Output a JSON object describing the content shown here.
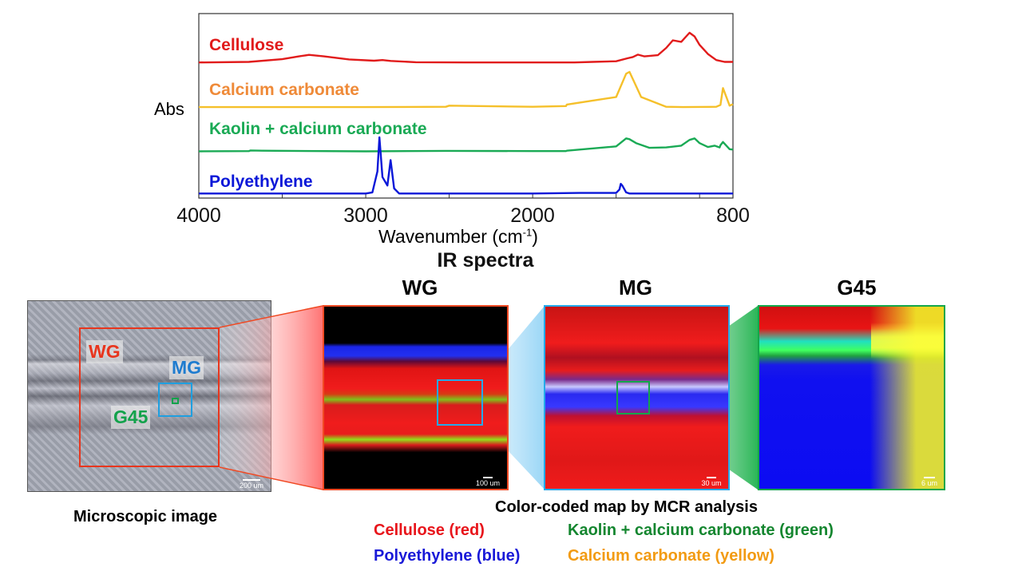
{
  "chart_data": {
    "type": "line",
    "title": "IR spectra",
    "ylabel": "Abs",
    "xlabel": "Wavenumber (cm-1)",
    "xlabel_parts": [
      "Wavenumber (cm",
      "-1",
      ")"
    ],
    "xlim": [
      4000,
      800
    ],
    "xticks": [
      "4000",
      "3000",
      "2000",
      "800"
    ],
    "series": [
      {
        "name": "Cellulose",
        "color": "#e11b1b",
        "x": [
          4000,
          3700,
          3500,
          3400,
          3340,
          3250,
          3100,
          2950,
          2900,
          2850,
          2700,
          2400,
          2000,
          1750,
          1640,
          1500,
          1430,
          1400,
          1370,
          1330,
          1250,
          1200,
          1160,
          1110,
          1060,
          1030,
          1000,
          950,
          900,
          850,
          800
        ],
        "y": [
          0.02,
          0.04,
          0.13,
          0.22,
          0.27,
          0.22,
          0.12,
          0.08,
          0.1,
          0.07,
          0.03,
          0.02,
          0.02,
          0.02,
          0.04,
          0.06,
          0.16,
          0.2,
          0.28,
          0.22,
          0.26,
          0.5,
          0.75,
          0.7,
          1.0,
          0.88,
          0.6,
          0.3,
          0.1,
          0.04,
          0.04
        ]
      },
      {
        "name": "Calcium carbonate",
        "color": "#f5c02a",
        "x": [
          4000,
          3000,
          2520,
          2500,
          2000,
          1800,
          1795,
          1500,
          1440,
          1420,
          1400,
          1350,
          1200,
          1100,
          900,
          875,
          860,
          820,
          800
        ],
        "y": [
          0.02,
          0.02,
          0.03,
          0.06,
          0.03,
          0.05,
          0.09,
          0.3,
          0.95,
          1.0,
          0.8,
          0.3,
          0.03,
          0.02,
          0.03,
          0.08,
          0.55,
          0.06,
          0.1
        ]
      },
      {
        "name": "Kaolin + calcium carbonate",
        "color": "#1aaa55",
        "x": [
          4000,
          3700,
          3690,
          3620,
          3000,
          2520,
          2000,
          1800,
          1795,
          1500,
          1440,
          1420,
          1380,
          1300,
          1200,
          1110,
          1060,
          1030,
          1000,
          950,
          910,
          880,
          875,
          860,
          820,
          800
        ],
        "y": [
          0.02,
          0.03,
          0.06,
          0.05,
          0.02,
          0.04,
          0.03,
          0.03,
          0.05,
          0.25,
          0.62,
          0.58,
          0.4,
          0.18,
          0.2,
          0.28,
          0.55,
          0.62,
          0.4,
          0.22,
          0.28,
          0.2,
          0.3,
          0.45,
          0.12,
          0.1
        ]
      },
      {
        "name": "Polyethylene",
        "color": "#0a17d8",
        "x": [
          4000,
          3000,
          2960,
          2930,
          2918,
          2900,
          2870,
          2851,
          2830,
          2800,
          2000,
          1720,
          1500,
          1480,
          1472,
          1463,
          1440,
          1420,
          800
        ],
        "y": [
          0.01,
          0.01,
          0.03,
          0.4,
          1.0,
          0.3,
          0.15,
          0.6,
          0.1,
          0.01,
          0.01,
          0.02,
          0.02,
          0.08,
          0.18,
          0.15,
          0.03,
          0.01,
          0.01
        ]
      }
    ]
  },
  "microscope": {
    "caption": "Microscopic image",
    "scalebar": "200 um",
    "rois": [
      {
        "label": "WG",
        "color": "#e8361e"
      },
      {
        "label": "MG",
        "color": "#1f7ccf"
      },
      {
        "label": "G45",
        "color": "#13a24b"
      }
    ]
  },
  "maps": [
    {
      "title": "WG",
      "title_color": "#e8212a",
      "border": "#f04a24",
      "scalebar": "100 um"
    },
    {
      "title": "MG",
      "title_color": "#2bb4e8",
      "border": "#25a9ea",
      "scalebar": "30 um"
    },
    {
      "title": "G45",
      "title_color": "#14943a",
      "border": "#14a64a",
      "scalebar": "6 um"
    }
  ],
  "map_caption": "Color-coded map by MCR analysis",
  "legend": [
    {
      "text": "Cellulose (red)",
      "color": "#e8151b"
    },
    {
      "text": "Kaolin + calcium carbonate (green)",
      "color": "#14862f"
    },
    {
      "text": "Polyethylene (blue)",
      "color": "#1a1ad8"
    },
    {
      "text": "Calcium carbonate (yellow)",
      "color": "#f29b13"
    }
  ]
}
